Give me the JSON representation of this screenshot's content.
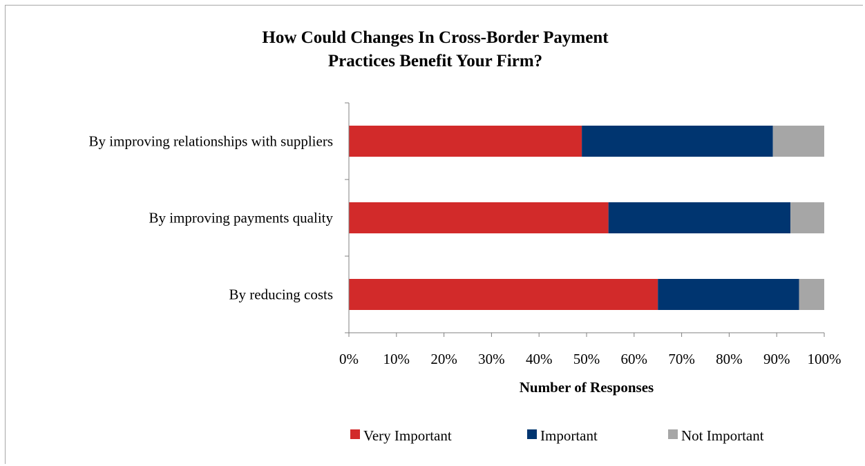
{
  "chart_data": {
    "type": "bar",
    "orientation": "horizontal",
    "stacked": true,
    "title_lines": [
      "How Could Changes In Cross-Border Payment",
      "Practices Benefit Your Firm?"
    ],
    "xlabel": "Number of Responses",
    "ylabel": "",
    "categories": [
      "By improving relationships with suppliers",
      "By improving payments quality",
      "By reducing costs"
    ],
    "series": [
      {
        "name": "Very Important",
        "color": "#d22a2a",
        "values": [
          49,
          54.6,
          65
        ]
      },
      {
        "name": "Important",
        "color": "#003570",
        "values": [
          40.2,
          38.3,
          29.7
        ]
      },
      {
        "name": "Not Important",
        "color": "#a6a6a6",
        "values": [
          10.8,
          7.1,
          5.3
        ]
      }
    ],
    "xlim": [
      0,
      100
    ],
    "x_ticks": [
      "0%",
      "10%",
      "20%",
      "30%",
      "40%",
      "50%",
      "60%",
      "70%",
      "80%",
      "90%",
      "100%"
    ],
    "grid": false,
    "legend_position": "bottom"
  }
}
